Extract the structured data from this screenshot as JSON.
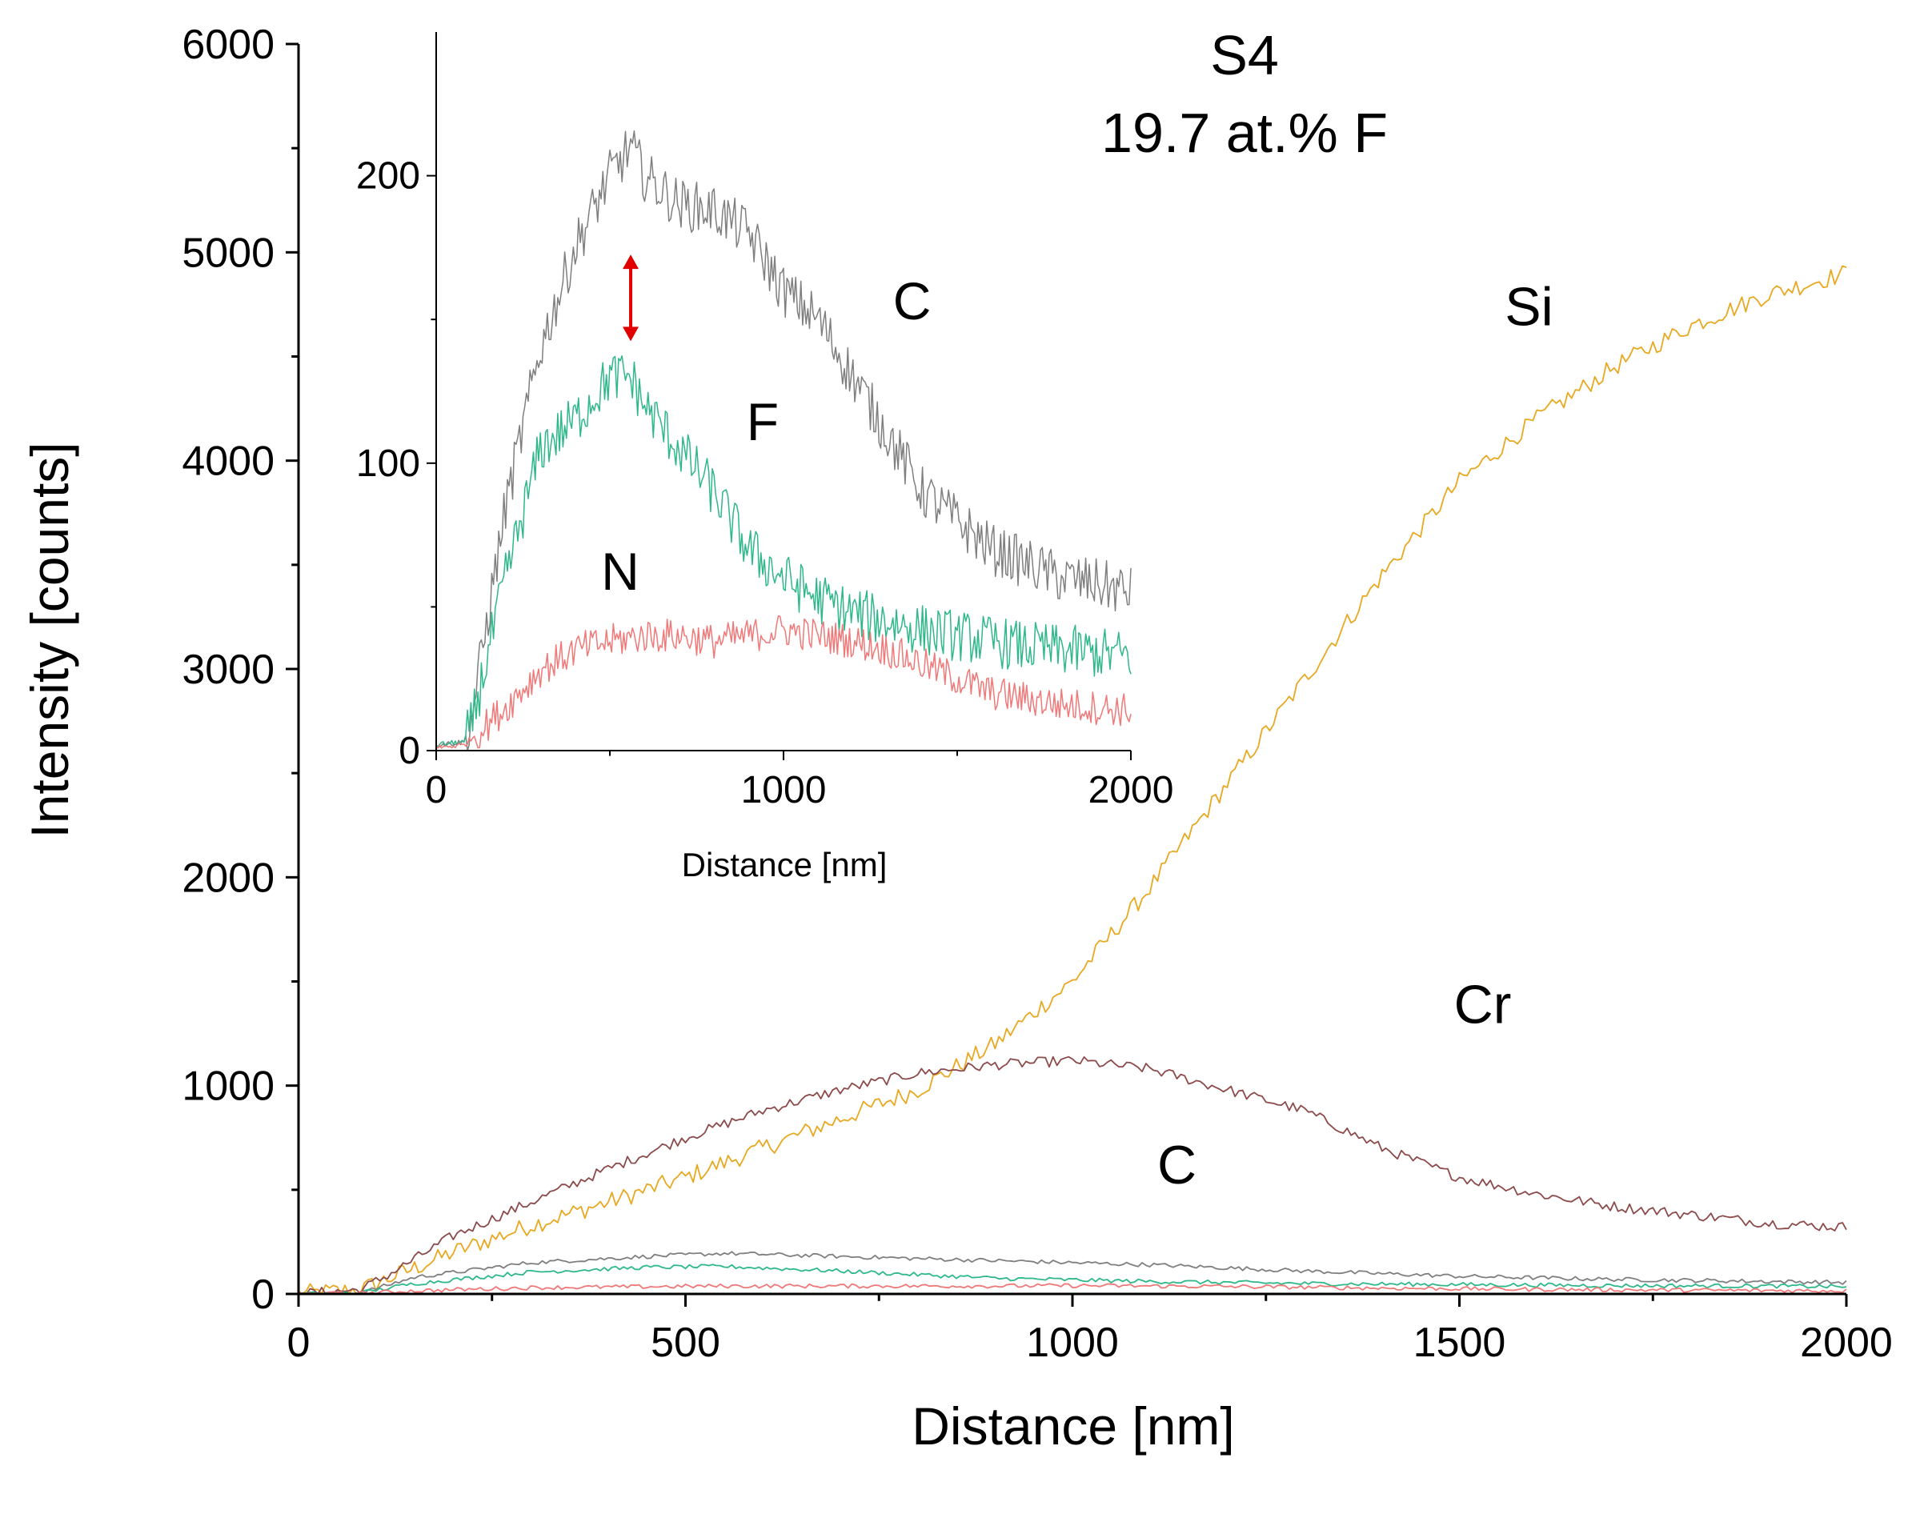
{
  "annotation": {
    "sample": "S4",
    "composition": "19.7 at.% F"
  },
  "colors": {
    "C": "#7f7f7f",
    "F": "#2eb888",
    "N": "#f07878",
    "Si": "#e8a820",
    "Cr": "#8c4a4a",
    "arrow": "#e00000"
  },
  "chart_data": [
    {
      "id": "main",
      "type": "line",
      "xlabel": "Distance [nm]",
      "ylabel": "Intensity [counts]",
      "xlim": [
        0,
        2000
      ],
      "ylim": [
        0,
        6000
      ],
      "xticks": [
        0,
        500,
        1000,
        1500,
        2000
      ],
      "xtick_labels": [
        "0",
        "500",
        "1000",
        "1500",
        "2000"
      ],
      "yticks": [
        0,
        1000,
        2000,
        3000,
        4000,
        5000,
        6000
      ],
      "ytick_labels": [
        "0",
        "1000",
        "2000",
        "3000",
        "4000",
        "5000",
        "6000"
      ],
      "series": [
        {
          "name": "Si",
          "color": "#e8a820",
          "x": [
            0,
            80,
            120,
            200,
            300,
            400,
            500,
            600,
            700,
            800,
            900,
            1000,
            1100,
            1200,
            1300,
            1400,
            1500,
            1600,
            1700,
            1800,
            1900,
            2000
          ],
          "y": [
            0,
            20,
            80,
            200,
            330,
            440,
            560,
            700,
            840,
            980,
            1200,
            1500,
            1950,
            2450,
            2950,
            3450,
            3900,
            4200,
            4450,
            4650,
            4800,
            4900
          ]
        },
        {
          "name": "Cr",
          "color": "#8c4a4a",
          "x": [
            0,
            80,
            120,
            200,
            300,
            400,
            500,
            600,
            700,
            800,
            900,
            1000,
            1100,
            1200,
            1300,
            1400,
            1500,
            1600,
            1700,
            1800,
            1900,
            2000
          ],
          "y": [
            0,
            20,
            100,
            280,
            440,
            600,
            750,
            880,
            980,
            1060,
            1100,
            1120,
            1080,
            980,
            880,
            700,
            560,
            480,
            420,
            380,
            340,
            320
          ]
        },
        {
          "name": "C",
          "color": "#7f7f7f",
          "x": [
            0,
            80,
            150,
            300,
            450,
            550,
            700,
            900,
            1100,
            1300,
            1500,
            1700,
            1900,
            2000
          ],
          "y": [
            0,
            5,
            80,
            150,
            180,
            195,
            180,
            160,
            140,
            110,
            85,
            70,
            60,
            55
          ]
        },
        {
          "name": "F",
          "color": "#2eb888",
          "x": [
            0,
            80,
            150,
            300,
            450,
            550,
            700,
            900,
            1100,
            1300,
            1500,
            1700,
            1900,
            2000
          ],
          "y": [
            0,
            5,
            50,
            105,
            128,
            132,
            110,
            75,
            60,
            50,
            45,
            40,
            38,
            35
          ]
        },
        {
          "name": "N",
          "color": "#f07878",
          "x": [
            0,
            80,
            150,
            300,
            450,
            550,
            700,
            900,
            1000,
            1200,
            1400,
            1600,
            1800,
            2000
          ],
          "y": [
            0,
            3,
            15,
            30,
            35,
            38,
            38,
            38,
            40,
            36,
            28,
            22,
            18,
            15
          ]
        }
      ],
      "labels": [
        {
          "text": "Si",
          "x": 1590,
          "y": 4650
        },
        {
          "text": "Cr",
          "x": 1530,
          "y": 1300
        },
        {
          "text": "C",
          "x": 1135,
          "y": 530
        }
      ]
    },
    {
      "id": "inset",
      "type": "line",
      "xlabel": "Distance [nm]",
      "ylabel": "",
      "xlim": [
        0,
        2000
      ],
      "ylim": [
        0,
        250
      ],
      "xticks": [
        0,
        1000,
        2000
      ],
      "xtick_labels": [
        "0",
        "1000",
        "2000"
      ],
      "yticks": [
        0,
        100,
        200
      ],
      "ytick_labels": [
        "0",
        "100",
        "200"
      ],
      "series": [
        {
          "name": "C",
          "color": "#7f7f7f",
          "x": [
            0,
            80,
            100,
            200,
            300,
            400,
            500,
            560,
            600,
            700,
            800,
            900,
            1000,
            1100,
            1200,
            1300,
            1400,
            1500,
            1600,
            1700,
            1800,
            1900,
            2000
          ],
          "y": [
            2,
            3,
            10,
            85,
            140,
            175,
            200,
            210,
            200,
            190,
            188,
            180,
            160,
            150,
            130,
            110,
            90,
            80,
            70,
            65,
            60,
            58,
            55
          ]
        },
        {
          "name": "F",
          "color": "#2eb888",
          "x": [
            0,
            80,
            100,
            200,
            300,
            400,
            500,
            560,
            600,
            700,
            800,
            900,
            1000,
            1100,
            1200,
            1300,
            1400,
            1500,
            1600,
            1700,
            1800,
            1900,
            2000
          ],
          "y": [
            2,
            3,
            8,
            60,
            105,
            115,
            130,
            130,
            120,
            105,
            90,
            70,
            60,
            53,
            48,
            45,
            42,
            40,
            38,
            36,
            35,
            34,
            33
          ]
        },
        {
          "name": "N",
          "color": "#f07878",
          "x": [
            0,
            80,
            100,
            200,
            300,
            400,
            500,
            600,
            700,
            800,
            900,
            1000,
            1100,
            1200,
            1300,
            1400,
            1500,
            1600,
            1700,
            1800,
            1900,
            2000
          ],
          "y": [
            1,
            2,
            4,
            15,
            28,
            35,
            38,
            40,
            40,
            38,
            40,
            42,
            40,
            38,
            35,
            30,
            25,
            20,
            18,
            16,
            15,
            14
          ]
        }
      ],
      "labels": [
        {
          "text": "C",
          "x": 1370,
          "y": 150
        },
        {
          "text": "F",
          "x": 940,
          "y": 108
        },
        {
          "text": "N",
          "x": 530,
          "y": 56
        }
      ],
      "arrow": {
        "x": 560,
        "y_from": 143,
        "y_to": 172
      }
    }
  ]
}
